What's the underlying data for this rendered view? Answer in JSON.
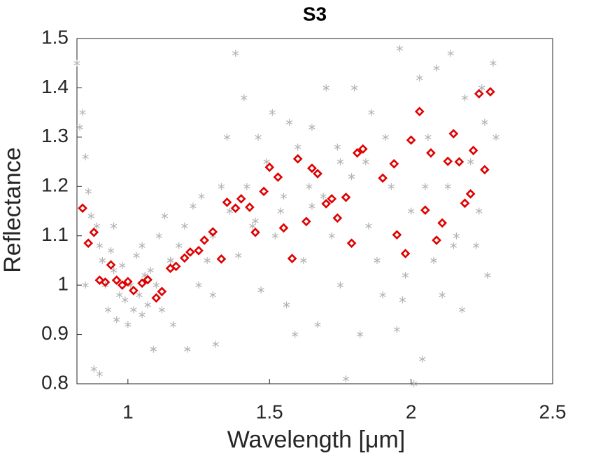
{
  "chart_data": {
    "type": "scatter",
    "title": "S3",
    "xlabel": "Wavelength [μm]",
    "ylabel": "Reflectance",
    "xlim": [
      0.82,
      2.5
    ],
    "ylim": [
      0.8,
      1.5
    ],
    "xticks": [
      1,
      1.5,
      2,
      2.5
    ],
    "yticks": [
      0.8,
      0.9,
      1,
      1.1,
      1.2,
      1.3,
      1.4,
      1.5
    ],
    "grid": false,
    "series": [
      {
        "color": "#b3b3b3",
        "marker": "asterisk",
        "x": [
          0.82,
          0.83,
          0.84,
          0.85,
          0.86,
          0.87,
          0.88,
          0.89,
          0.9,
          0.9,
          0.91,
          0.92,
          0.93,
          0.94,
          0.95,
          0.96,
          0.97,
          0.98,
          0.99,
          1.0,
          1.01,
          1.02,
          1.03,
          1.04,
          1.05,
          1.06,
          1.07,
          1.08,
          1.09,
          1.1,
          1.11,
          1.12,
          1.13,
          1.15,
          1.16,
          1.18,
          1.2,
          1.21,
          1.23,
          1.25,
          1.26,
          1.28,
          1.3,
          1.31,
          1.33,
          1.35,
          1.36,
          1.38,
          1.39,
          1.41,
          1.42,
          1.44,
          1.46,
          1.47,
          1.49,
          1.51,
          1.52,
          1.54,
          1.56,
          1.57,
          1.59,
          1.6,
          1.62,
          1.64,
          1.65,
          1.67,
          1.69,
          1.7,
          1.72,
          1.74,
          1.75,
          1.77,
          1.79,
          1.8,
          1.82,
          1.84,
          1.86,
          1.88,
          1.9,
          1.91,
          1.93,
          1.95,
          1.96,
          1.98,
          2.0,
          2.01,
          2.03,
          2.04,
          2.06,
          2.08,
          2.09,
          2.11,
          2.13,
          2.14,
          2.16,
          2.18,
          2.19,
          2.21,
          2.23,
          2.24,
          2.26,
          2.27,
          2.29,
          2.3,
          0.85,
          0.95,
          1.05,
          1.15,
          1.3,
          1.45,
          1.55,
          1.65,
          1.75,
          1.85,
          1.97,
          2.05,
          2.15,
          2.25
        ],
        "values": [
          1.45,
          1.32,
          1.35,
          1.26,
          1.19,
          1.14,
          0.83,
          1.12,
          0.82,
          1.08,
          1.05,
          1.0,
          0.95,
          1.07,
          1.03,
          0.93,
          0.98,
          1.04,
          0.97,
          0.92,
          1.0,
          0.95,
          1.06,
          0.98,
          1.08,
          1.02,
          0.96,
          1.03,
          0.87,
          1.0,
          1.1,
          0.95,
          1.14,
          1.05,
          0.92,
          1.08,
          1.12,
          0.87,
          1.16,
          1.0,
          1.18,
          1.05,
          1.1,
          0.88,
          1.2,
          1.3,
          1.15,
          1.47,
          1.06,
          1.38,
          1.2,
          1.12,
          1.3,
          0.99,
          1.25,
          1.35,
          1.1,
          1.15,
          0.96,
          1.33,
          0.9,
          1.28,
          1.05,
          1.2,
          1.32,
          0.92,
          1.18,
          1.4,
          1.1,
          1.28,
          1.0,
          0.81,
          1.22,
          1.4,
          0.9,
          1.25,
          1.35,
          1.05,
          0.98,
          1.3,
          1.2,
          0.91,
          1.48,
          1.02,
          1.15,
          0.8,
          1.42,
          0.85,
          1.3,
          1.05,
          1.44,
          0.98,
          1.2,
          1.47,
          1.1,
          0.95,
          1.38,
          1.25,
          1.08,
          1.15,
          1.33,
          1.02,
          1.45,
          1.3,
          1.0,
          1.12,
          0.94,
          1.05,
          0.98,
          1.13,
          1.18,
          1.16,
          1.25,
          1.12,
          0.97,
          1.2,
          1.08,
          1.4
        ]
      },
      {
        "color": "#e00000",
        "marker": "diamond",
        "x": [
          0.84,
          0.86,
          0.88,
          0.9,
          0.92,
          0.94,
          0.96,
          0.98,
          1.0,
          1.02,
          1.05,
          1.07,
          1.1,
          1.12,
          1.15,
          1.17,
          1.2,
          1.22,
          1.25,
          1.27,
          1.3,
          1.33,
          1.35,
          1.38,
          1.4,
          1.43,
          1.45,
          1.48,
          1.5,
          1.53,
          1.55,
          1.58,
          1.6,
          1.63,
          1.65,
          1.67,
          1.7,
          1.72,
          1.74,
          1.77,
          1.79,
          1.81,
          1.83,
          1.9,
          1.94,
          1.95,
          1.98,
          2.0,
          2.03,
          2.05,
          2.07,
          2.09,
          2.11,
          2.13,
          2.15,
          2.17,
          2.19,
          2.21,
          2.22,
          2.24,
          2.26,
          2.28
        ],
        "values": [
          1.156,
          1.085,
          1.107,
          1.01,
          1.006,
          1.041,
          1.01,
          1.0,
          1.007,
          0.989,
          1.004,
          1.011,
          0.974,
          0.987,
          1.034,
          1.038,
          1.055,
          1.067,
          1.07,
          1.091,
          1.108,
          1.053,
          1.168,
          1.156,
          1.175,
          1.158,
          1.107,
          1.19,
          1.239,
          1.219,
          1.116,
          1.054,
          1.256,
          1.129,
          1.237,
          1.226,
          1.165,
          1.175,
          1.136,
          1.178,
          1.085,
          1.268,
          1.276,
          1.217,
          1.246,
          1.102,
          1.064,
          1.294,
          1.352,
          1.152,
          1.268,
          1.091,
          1.126,
          1.251,
          1.307,
          1.25,
          1.166,
          1.185,
          1.273,
          1.388,
          1.234,
          1.392
        ]
      }
    ]
  }
}
